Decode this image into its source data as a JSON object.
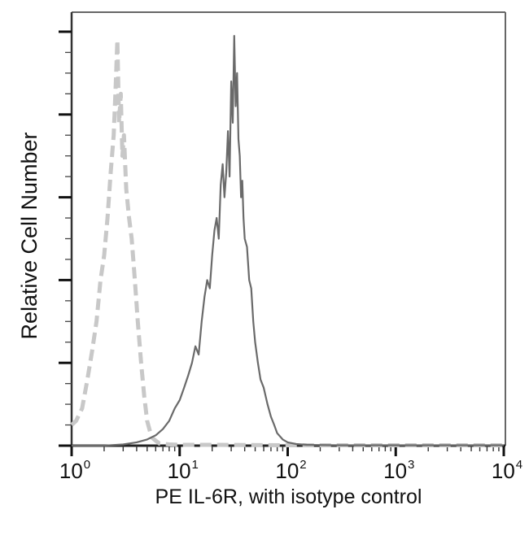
{
  "chart_data": {
    "type": "line",
    "subtype": "flow-cytometry-histogram",
    "title": "",
    "xlabel": "PE IL-6R, with isotype control",
    "ylabel": "Relative Cell Number",
    "xscale": "log",
    "xlim": [
      1,
      10000
    ],
    "ylim": [
      0,
      100
    ],
    "x_tick_labels": [
      {
        "base": "10",
        "exp": "0",
        "value": 1
      },
      {
        "base": "10",
        "exp": "1",
        "value": 10
      },
      {
        "base": "10",
        "exp": "2",
        "value": 100
      },
      {
        "base": "10",
        "exp": "3",
        "value": 1000
      },
      {
        "base": "10",
        "exp": "4",
        "value": 10000
      }
    ],
    "y_major_ticks": 6,
    "y_minor_per_major": 3,
    "y_tick_labels": [],
    "grid": false,
    "legend": null,
    "series": [
      {
        "name": "Isotype control",
        "style": "dashed",
        "color": "#c8c8c8",
        "x": [
          1.0,
          1.1,
          1.25,
          1.4,
          1.55,
          1.7,
          1.85,
          2.0,
          2.15,
          2.3,
          2.45,
          2.55,
          2.65,
          2.75,
          2.85,
          2.95,
          3.05,
          3.2,
          3.4,
          3.6,
          3.85,
          4.1,
          4.4,
          4.7,
          5.0,
          5.5,
          6.5,
          8,
          10,
          20,
          100,
          1000,
          10000
        ],
        "values": [
          5,
          6,
          9,
          16,
          23,
          30,
          40,
          46,
          55,
          66,
          75,
          86,
          98,
          78,
          85,
          70,
          75,
          62,
          55,
          50,
          40,
          30,
          20,
          12,
          6,
          2,
          0.5,
          0.3,
          0.2,
          0.2,
          0.1,
          0.1,
          0.1
        ]
      },
      {
        "name": "PE IL-6R",
        "style": "solid",
        "color": "#6a6a6a",
        "x": [
          1.0,
          2.0,
          3.0,
          4.0,
          5.0,
          6.0,
          7.0,
          8.0,
          9.0,
          10.0,
          11.0,
          12.0,
          13.0,
          14.0,
          15.0,
          16.0,
          17.0,
          18.0,
          19.0,
          20.0,
          21.0,
          22.0,
          23.0,
          24.0,
          25.0,
          26.0,
          27.0,
          28.0,
          29.0,
          30.0,
          31.0,
          32.0,
          33.0,
          34.0,
          35.0,
          36.0,
          37.0,
          38.0,
          39.0,
          40.0,
          42.0,
          44.0,
          46.0,
          48.0,
          50.0,
          53.0,
          56.0,
          60.0,
          65.0,
          70.0,
          75.0,
          80.0,
          90.0,
          100.0,
          120.0,
          150.0,
          300.0,
          1000.0,
          10000.0
        ],
        "values": [
          0,
          0,
          0.3,
          0.8,
          1.5,
          2.5,
          4,
          6,
          9,
          11,
          14,
          17,
          20,
          24,
          22,
          30,
          36,
          40,
          38,
          46,
          52,
          55,
          50,
          63,
          68,
          60,
          66,
          76,
          65,
          88,
          78,
          99,
          82,
          90,
          74,
          70,
          60,
          64,
          55,
          50,
          48,
          40,
          38,
          30,
          25,
          20,
          16,
          14,
          10,
          7,
          5,
          3,
          1.5,
          0.8,
          0.4,
          0.2,
          0.1,
          0.1,
          0.1
        ]
      }
    ]
  },
  "axes": {
    "x_title": "PE IL-6R, with isotype control",
    "y_title": "Relative Cell Number"
  }
}
